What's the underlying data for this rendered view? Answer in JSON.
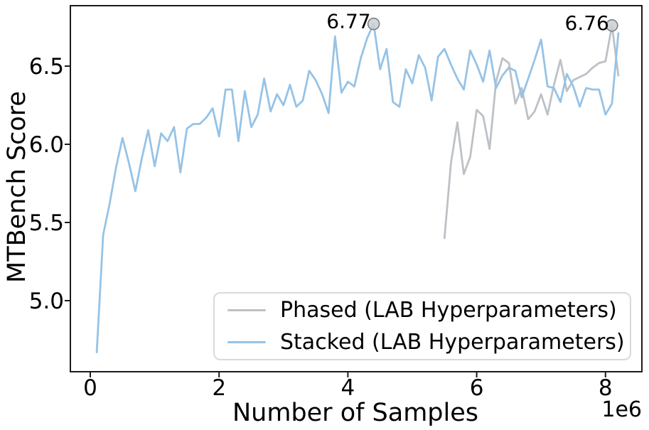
{
  "figure": {
    "xlabel": "Number of Samples",
    "ylabel": "MTBench Score",
    "offset_text": "1e6",
    "background": "#ffffff",
    "spine_color": "#1a1a1a"
  },
  "legend": {
    "items": [
      {
        "label": "Phased (LAB Hyperparameters)",
        "color": "#bdc1c6"
      },
      {
        "label": "Stacked (LAB Hyperparameters)",
        "color": "#96c3e6"
      }
    ]
  },
  "chart_data": {
    "type": "line",
    "title": "",
    "xlabel": "Number of Samples",
    "ylabel": "MTBench Score",
    "x_axis_offset_label": "1e6",
    "x_unit": "samples, values in millions (1e6)",
    "xlim_millions": [
      -0.31,
      8.56
    ],
    "ylim": [
      4.55,
      6.89
    ],
    "grid": false,
    "legend_position": "lower right inside axes",
    "x_ticks": [
      {
        "value": 0,
        "label": "0"
      },
      {
        "value": 2,
        "label": "2"
      },
      {
        "value": 4,
        "label": "4"
      },
      {
        "value": 6,
        "label": "6"
      },
      {
        "value": 8,
        "label": "8"
      }
    ],
    "y_ticks": [
      {
        "value": 5.0,
        "label": "5.0"
      },
      {
        "value": 5.5,
        "label": "5.5"
      },
      {
        "value": 6.0,
        "label": "6.0"
      },
      {
        "value": 6.5,
        "label": "6.5"
      }
    ],
    "series": [
      {
        "name": "Phased (LAB Hyperparameters)",
        "color": "#bdc1c6",
        "x_millions": [
          5.5,
          5.6,
          5.7,
          5.8,
          5.9,
          6.0,
          6.1,
          6.2,
          6.3,
          6.4,
          6.5,
          6.6,
          6.7,
          6.8,
          6.9,
          7.0,
          7.1,
          7.2,
          7.3,
          7.4,
          7.5,
          7.6,
          7.7,
          7.8,
          7.9,
          8.0,
          8.1,
          8.2
        ],
        "y": [
          5.4,
          5.88,
          6.14,
          5.81,
          5.92,
          6.22,
          6.18,
          5.97,
          6.4,
          6.55,
          6.52,
          6.26,
          6.36,
          6.16,
          6.21,
          6.32,
          6.19,
          6.38,
          6.54,
          6.34,
          6.41,
          6.43,
          6.45,
          6.49,
          6.52,
          6.53,
          6.76,
          6.44
        ]
      },
      {
        "name": "Stacked (LAB Hyperparameters)",
        "color": "#96c3e6",
        "x_millions": [
          0.1,
          0.2,
          0.3,
          0.4,
          0.5,
          0.6,
          0.7,
          0.8,
          0.9,
          1.0,
          1.1,
          1.2,
          1.3,
          1.4,
          1.5,
          1.6,
          1.7,
          1.8,
          1.9,
          2.0,
          2.1,
          2.2,
          2.3,
          2.4,
          2.5,
          2.6,
          2.7,
          2.8,
          2.9,
          3.0,
          3.1,
          3.2,
          3.3,
          3.4,
          3.5,
          3.6,
          3.7,
          3.8,
          3.9,
          4.0,
          4.1,
          4.2,
          4.3,
          4.4,
          4.5,
          4.6,
          4.7,
          4.8,
          4.9,
          5.0,
          5.1,
          5.2,
          5.3,
          5.4,
          5.5,
          5.6,
          5.7,
          5.8,
          5.9,
          6.0,
          6.1,
          6.2,
          6.3,
          6.4,
          6.5,
          6.6,
          6.7,
          6.8,
          6.9,
          7.0,
          7.1,
          7.2,
          7.3,
          7.4,
          7.5,
          7.6,
          7.7,
          7.8,
          7.9,
          8.0,
          8.1,
          8.2
        ],
        "y": [
          4.67,
          5.42,
          5.62,
          5.85,
          6.04,
          5.88,
          5.7,
          5.91,
          6.09,
          5.86,
          6.07,
          6.02,
          6.11,
          5.82,
          6.1,
          6.13,
          6.13,
          6.17,
          6.23,
          6.05,
          6.35,
          6.35,
          6.02,
          6.34,
          6.11,
          6.19,
          6.42,
          6.21,
          6.32,
          6.25,
          6.38,
          6.24,
          6.28,
          6.47,
          6.41,
          6.32,
          6.2,
          6.69,
          6.33,
          6.4,
          6.37,
          6.55,
          6.68,
          6.77,
          6.48,
          6.61,
          6.27,
          6.24,
          6.48,
          6.39,
          6.57,
          6.49,
          6.28,
          6.56,
          6.61,
          6.51,
          6.42,
          6.35,
          6.6,
          6.51,
          6.4,
          6.6,
          6.36,
          6.44,
          6.49,
          6.47,
          6.3,
          6.42,
          6.54,
          6.67,
          6.37,
          6.36,
          6.27,
          6.45,
          6.37,
          6.24,
          6.36,
          6.35,
          6.35,
          6.19,
          6.26,
          6.71
        ]
      }
    ],
    "annotated_points": [
      {
        "label": "6.77",
        "x_millions": 4.4,
        "y": 6.77,
        "series": "Stacked (LAB Hyperparameters)"
      },
      {
        "label": "6.76",
        "x_millions": 8.1,
        "y": 6.76,
        "series": "Phased (LAB Hyperparameters)"
      }
    ]
  }
}
